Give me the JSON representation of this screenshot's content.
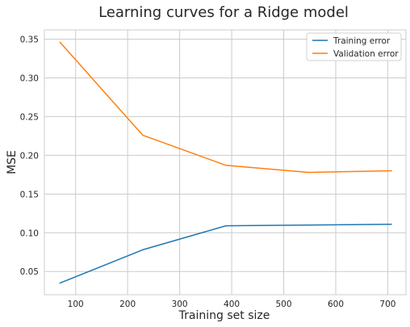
{
  "chart_data": {
    "type": "line",
    "title": "Learning curves for a Ridge model",
    "xlabel": "Training set size",
    "ylabel": "MSE",
    "xlim": [
      40,
      735
    ],
    "ylim": [
      0.02,
      0.362
    ],
    "xticks": [
      100,
      200,
      300,
      400,
      500,
      600,
      700
    ],
    "yticks": [
      0.05,
      0.1,
      0.15,
      0.2,
      0.25,
      0.3,
      0.35
    ],
    "grid": true,
    "legend_position": "top-right",
    "x": [
      70,
      229,
      389,
      548,
      707
    ],
    "series": [
      {
        "name": "Training error",
        "color": "#1f77b4",
        "values": [
          0.035,
          0.078,
          0.109,
          0.11,
          0.111
        ]
      },
      {
        "name": "Validation error",
        "color": "#ff7f0e",
        "values": [
          0.346,
          0.226,
          0.187,
          0.178,
          0.18
        ]
      }
    ]
  }
}
